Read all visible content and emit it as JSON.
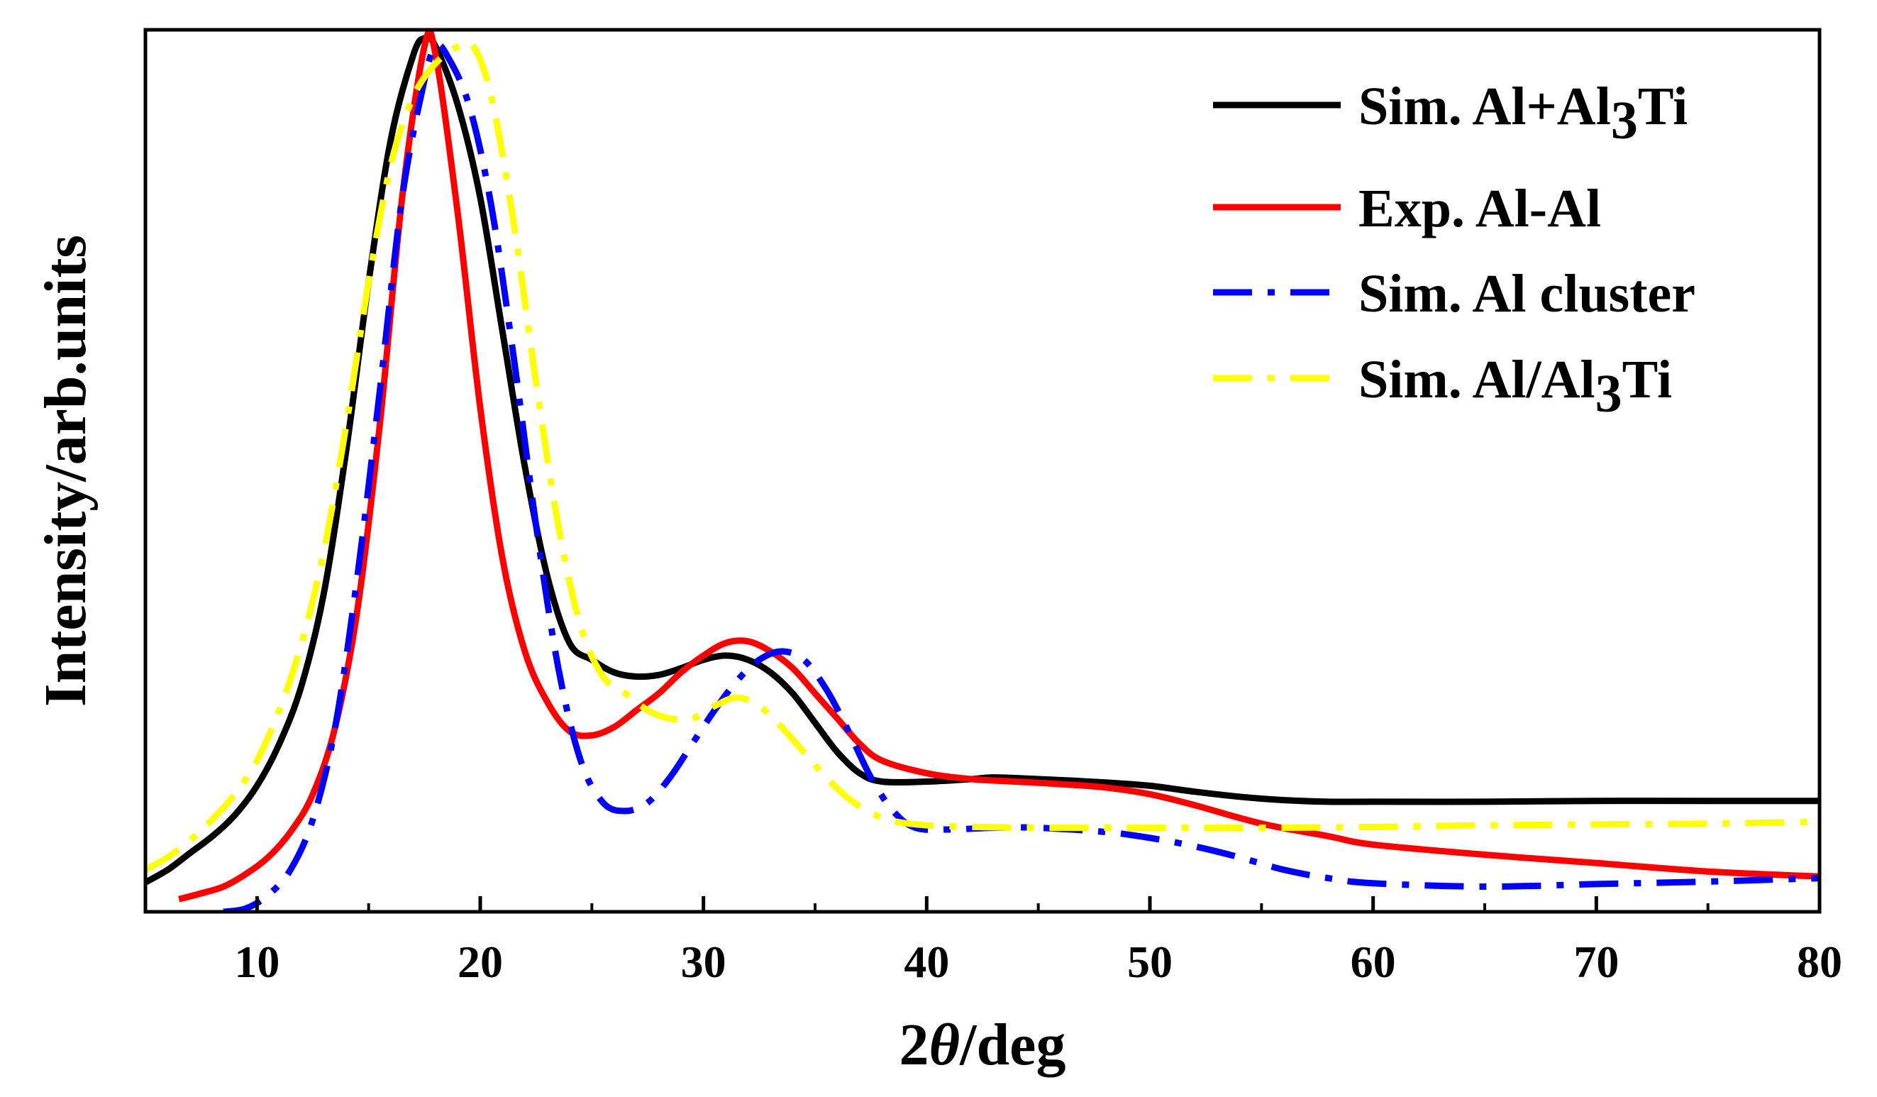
{
  "chart_data": {
    "type": "line",
    "title": "",
    "xlabel_prefix": "2",
    "xlabel_symbol": "θ",
    "xlabel_suffix": "/deg",
    "ylabel": "Intensity/arb.units",
    "xlim": [
      5,
      80
    ],
    "ylim": [
      0,
      1.05
    ],
    "xticks": [
      10,
      20,
      30,
      40,
      50,
      60,
      70,
      80
    ],
    "xtick_labels": [
      "10",
      "20",
      "30",
      "40",
      "50",
      "60",
      "70",
      "80"
    ],
    "x_minor_step": 5,
    "y_tick_labels": "none",
    "grid": false,
    "legend_position": "top-right",
    "series": [
      {
        "name": "Sim. Al+Al3Ti",
        "legend_main": "Sim. Al+Al",
        "legend_sub": "3",
        "legend_tail": "Ti",
        "color": "#000000",
        "style": "solid",
        "x": [
          5,
          6,
          7,
          8,
          9,
          10,
          11,
          12,
          13,
          14,
          15,
          16,
          17,
          17.5,
          18,
          19,
          20,
          21,
          22,
          23,
          24,
          25,
          26,
          27,
          28,
          29,
          30,
          31,
          32,
          33,
          34,
          35,
          36,
          37,
          38,
          40,
          42,
          43,
          45,
          48,
          50,
          52,
          54,
          56,
          58,
          60,
          65,
          70,
          75,
          80
        ],
        "y": [
          0.035,
          0.05,
          0.07,
          0.09,
          0.115,
          0.15,
          0.2,
          0.27,
          0.38,
          0.55,
          0.75,
          0.92,
          1.02,
          1.04,
          1.03,
          0.96,
          0.85,
          0.69,
          0.53,
          0.4,
          0.32,
          0.3,
          0.285,
          0.28,
          0.282,
          0.29,
          0.3,
          0.305,
          0.3,
          0.285,
          0.26,
          0.225,
          0.19,
          0.165,
          0.155,
          0.155,
          0.158,
          0.16,
          0.158,
          0.154,
          0.15,
          0.143,
          0.137,
          0.133,
          0.131,
          0.131,
          0.131,
          0.132,
          0.132,
          0.132
        ]
      },
      {
        "name": "Exp. Al-Al",
        "legend_main": "Exp. Al-Al",
        "legend_sub": "",
        "legend_tail": "",
        "color": "#ff0000",
        "style": "solid",
        "x": [
          6.5,
          7.5,
          8.5,
          9.5,
          10.5,
          11.5,
          12.5,
          13.5,
          14.5,
          15.5,
          16.5,
          17.5,
          18,
          19,
          20,
          21,
          22,
          23,
          24,
          25,
          26,
          27,
          28,
          29,
          30,
          31,
          32,
          33,
          34,
          35,
          36,
          37,
          38,
          40,
          42,
          44,
          46,
          48,
          50,
          52,
          55,
          58,
          60,
          65,
          70,
          75,
          80
        ],
        "y": [
          0.015,
          0.022,
          0.03,
          0.045,
          0.065,
          0.095,
          0.14,
          0.22,
          0.36,
          0.58,
          0.85,
          1.03,
          1.02,
          0.83,
          0.6,
          0.42,
          0.31,
          0.25,
          0.215,
          0.21,
          0.22,
          0.24,
          0.26,
          0.285,
          0.305,
          0.32,
          0.322,
          0.31,
          0.29,
          0.26,
          0.23,
          0.2,
          0.18,
          0.165,
          0.158,
          0.155,
          0.152,
          0.148,
          0.14,
          0.127,
          0.105,
          0.09,
          0.08,
          0.068,
          0.058,
          0.048,
          0.042
        ]
      },
      {
        "name": "Sim. Al cluster",
        "legend_main": "Sim. Al cluster",
        "legend_sub": "",
        "legend_tail": "",
        "color": "#0000ff",
        "style": "dashdot",
        "x": [
          8.5,
          9.5,
          10.5,
          11.5,
          12.5,
          13.5,
          14.5,
          15.5,
          16.5,
          17.5,
          18,
          18.5,
          19.5,
          20.5,
          21.5,
          22.5,
          23.5,
          24.5,
          25.5,
          26.5,
          27.5,
          28.5,
          29.5,
          30.5,
          31.5,
          32.5,
          33.5,
          34.5,
          35.5,
          36.5,
          37.5,
          38.5,
          39.5,
          41,
          43,
          45,
          48,
          50,
          52,
          54,
          56,
          58,
          60,
          65,
          70,
          75,
          80
        ],
        "y": [
          0.0,
          0.004,
          0.02,
          0.05,
          0.11,
          0.22,
          0.4,
          0.62,
          0.85,
          0.99,
          1.03,
          1.02,
          0.96,
          0.84,
          0.66,
          0.46,
          0.29,
          0.18,
          0.13,
          0.12,
          0.13,
          0.16,
          0.2,
          0.24,
          0.275,
          0.3,
          0.31,
          0.3,
          0.265,
          0.215,
          0.16,
          0.12,
          0.1,
          0.098,
          0.1,
          0.1,
          0.095,
          0.088,
          0.078,
          0.065,
          0.05,
          0.04,
          0.034,
          0.03,
          0.033,
          0.036,
          0.04
        ]
      },
      {
        "name": "Sim. Al/Al3Ti",
        "legend_main": "Sim. Al/Al",
        "legend_sub": "3",
        "legend_tail": "Ti",
        "color": "#ffff00",
        "style": "dashdot",
        "x": [
          5,
          6,
          7,
          8,
          9,
          10,
          11,
          12,
          13,
          14,
          15,
          16,
          17,
          18,
          19,
          19.7,
          20.5,
          21.5,
          22.5,
          23.5,
          24.5,
          25.5,
          26.5,
          27.5,
          28.5,
          29.5,
          30.5,
          31.5,
          32.5,
          33.5,
          34.5,
          35.5,
          36.5,
          37.5,
          38.5,
          40,
          42,
          45,
          50,
          55,
          60,
          65,
          70,
          75,
          80
        ],
        "y": [
          0.05,
          0.065,
          0.085,
          0.11,
          0.14,
          0.18,
          0.24,
          0.32,
          0.43,
          0.58,
          0.75,
          0.89,
          0.97,
          1.01,
          1.03,
          1.03,
          0.97,
          0.82,
          0.63,
          0.46,
          0.34,
          0.28,
          0.26,
          0.24,
          0.23,
          0.23,
          0.245,
          0.255,
          0.245,
          0.22,
          0.19,
          0.16,
          0.135,
          0.118,
          0.108,
          0.103,
          0.101,
          0.1,
          0.1,
          0.1,
          0.101,
          0.103,
          0.104,
          0.105,
          0.107
        ]
      }
    ]
  }
}
